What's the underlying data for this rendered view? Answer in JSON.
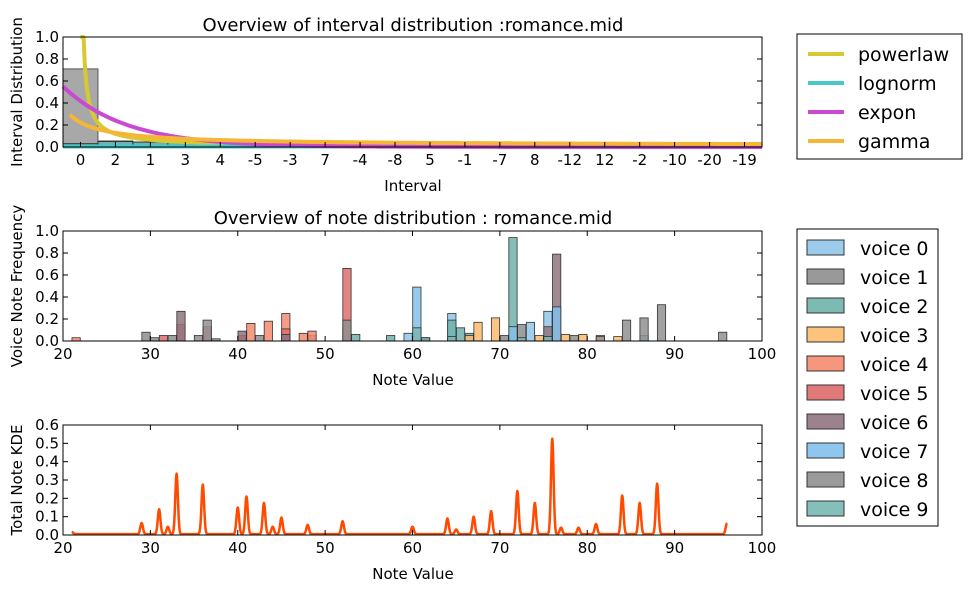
{
  "chart_data": [
    {
      "type": "bar",
      "title": "Overview of interval distribution :romance.mid",
      "xlabel": "Interval",
      "ylabel": "Interval Distribution",
      "ylim": [
        0,
        1.0
      ],
      "yticks": [
        "0.0",
        "0.2",
        "0.4",
        "0.6",
        "0.8",
        "1.0"
      ],
      "categories": [
        "0",
        "2",
        "1",
        "3",
        "4",
        "-5",
        "-3",
        "7",
        "-4",
        "-8",
        "5",
        "-1",
        "-7",
        "8",
        "-12",
        "12",
        "-2",
        "-10",
        "-20",
        "-19"
      ],
      "histogram": {
        "edges": [
          -0.5,
          0.5,
          1.5,
          2.5,
          3.5,
          4.5,
          5.5,
          6.5,
          7.5,
          8.5,
          9.5,
          10.5,
          11.5,
          12.5,
          13.5,
          14.5,
          15.5,
          16.5,
          17.5,
          18.5,
          19.5
        ],
        "values": [
          0.71,
          0.055,
          0.045,
          0.045,
          0.02,
          0.015,
          0.012,
          0.01,
          0.008,
          0.006,
          0.005,
          0.004,
          0.003,
          0.003,
          0.002,
          0.002,
          0.002,
          0.001,
          0.001,
          0.001
        ],
        "color": "#a8a8a8"
      },
      "overlay_histogram": {
        "edges": [
          -0.5,
          0.5,
          1.5,
          2.5,
          3.5,
          4.5,
          5.5,
          6.5,
          7.5
        ],
        "values": [
          0.03,
          0.05,
          0.045,
          0.045,
          0.02,
          0.012,
          0.008,
          0.005
        ],
        "color": "#5fb3b3"
      },
      "series": [
        {
          "name": "powerlaw",
          "color": "#d8c934",
          "kind": "powerlaw",
          "a": 0.12,
          "b": 0.22,
          "from": 0,
          "to": 9
        },
        {
          "name": "lognorm",
          "color": "#47c9c9",
          "kind": "constant",
          "value": 0.005,
          "from": -0.5,
          "to": 19.5
        },
        {
          "name": "expon",
          "color": "#c94ad1",
          "kind": "expon",
          "a": 0.55,
          "rate": 0.55,
          "from": -0.5,
          "to": 19.5
        },
        {
          "name": "gamma",
          "color": "#f6b635",
          "kind": "decay",
          "a": 0.25,
          "b": 1.0,
          "c": 0.015,
          "from": -0.3,
          "to": 19.5
        }
      ],
      "legend_placement": "outside-right"
    },
    {
      "type": "bar",
      "title": "Overview of note distribution : romance.mid",
      "xlabel": "Note Value",
      "ylabel": "Voice Note Frequency",
      "xlim": [
        20,
        100
      ],
      "ylim": [
        0,
        1.0
      ],
      "xticks": [
        20,
        30,
        40,
        50,
        60,
        70,
        80,
        90,
        100
      ],
      "yticks": [
        "0.0",
        "0.2",
        "0.4",
        "0.6",
        "0.8",
        "1.0"
      ],
      "bin_width": 0.95,
      "series": [
        {
          "name": "voice 0",
          "color": "#92c5ea",
          "bars": [
            [
              59.5,
              0.07
            ],
            [
              64.5,
              0.25
            ],
            [
              73.5,
              0.17
            ],
            [
              75.5,
              0.27
            ],
            [
              86.5,
              0.05
            ]
          ]
        },
        {
          "name": "voice 1",
          "color": "#8e8e8e",
          "bars": [
            [
              29.5,
              0.08
            ],
            [
              32.5,
              0.05
            ],
            [
              35.5,
              0.05
            ],
            [
              37.5,
              0.02
            ],
            [
              42.5,
              0.05
            ],
            [
              48.5,
              0.05
            ],
            [
              61.5,
              0.03
            ],
            [
              70.5,
              0.05
            ],
            [
              72.5,
              0.15
            ]
          ]
        },
        {
          "name": "voice 2",
          "color": "#6fb2aa",
          "bars": [
            [
              53.5,
              0.06
            ],
            [
              57.5,
              0.05
            ],
            [
              61.5,
              0.03
            ],
            [
              64.5,
              0.19
            ],
            [
              65.5,
              0.12
            ],
            [
              66.5,
              0.07
            ],
            [
              71.5,
              0.94
            ]
          ]
        },
        {
          "name": "voice 3",
          "color": "#fdbb6e",
          "bars": [
            [
              66.5,
              0.05
            ],
            [
              67.5,
              0.17
            ],
            [
              69.5,
              0.21
            ],
            [
              74.5,
              0.05
            ],
            [
              77.5,
              0.06
            ],
            [
              79.5,
              0.06
            ],
            [
              81.5,
              0.05
            ],
            [
              83.5,
              0.04
            ]
          ]
        },
        {
          "name": "voice 4",
          "color": "#f58b6f",
          "bars": [
            [
              21.5,
              0.03
            ],
            [
              41.5,
              0.16
            ],
            [
              43.5,
              0.18
            ],
            [
              45.5,
              0.25
            ],
            [
              47.5,
              0.07
            ],
            [
              48.5,
              0.09
            ],
            [
              52.5,
              0.12
            ]
          ]
        },
        {
          "name": "voice 5",
          "color": "#e06c6c",
          "bars": [
            [
              31.5,
              0.05
            ],
            [
              33.5,
              0.15
            ],
            [
              36.5,
              0.13
            ],
            [
              40.5,
              0.05
            ],
            [
              45.5,
              0.11
            ],
            [
              52.5,
              0.66
            ]
          ]
        },
        {
          "name": "voice 6",
          "color": "#917480",
          "bars": [
            [
              33.5,
              0.27
            ],
            [
              40.5,
              0.09
            ],
            [
              45.5,
              0.06
            ],
            [
              75.5,
              0.13
            ],
            [
              76.5,
              0.79
            ]
          ]
        },
        {
          "name": "voice 7",
          "color": "#83c0eb",
          "bars": [
            [
              60.5,
              0.49
            ],
            [
              71.5,
              0.13
            ],
            [
              76.5,
              0.31
            ]
          ]
        },
        {
          "name": "voice 8",
          "color": "#909090",
          "bars": [
            [
              30.5,
              0.03
            ],
            [
              36.5,
              0.19
            ],
            [
              52.5,
              0.19
            ],
            [
              78.5,
              0.05
            ],
            [
              81.5,
              0.04
            ],
            [
              84.5,
              0.19
            ],
            [
              86.5,
              0.21
            ],
            [
              88.5,
              0.33
            ],
            [
              95.5,
              0.08
            ]
          ]
        },
        {
          "name": "voice 9",
          "color": "#78b8b2",
          "bars": [
            [
              60.5,
              0.12
            ],
            [
              64.5,
              0.04
            ],
            [
              72.5,
              0.03
            ],
            [
              75.5,
              0.04
            ]
          ]
        }
      ],
      "legend_placement": "outside-right"
    },
    {
      "type": "line",
      "xlabel": "Note Value",
      "ylabel": "Total Note KDE",
      "xlim": [
        20,
        100
      ],
      "ylim": [
        0,
        0.6
      ],
      "xticks": [
        20,
        30,
        40,
        50,
        60,
        70,
        80,
        90,
        100
      ],
      "yticks": [
        "0.0",
        "0.1",
        "0.2",
        "0.3",
        "0.4",
        "0.5",
        "0.6"
      ],
      "color": "#ff4a00",
      "x_range": [
        21,
        96
      ],
      "baseline": 0.005,
      "peak_width": 0.15,
      "peaks": [
        [
          21,
          0.012
        ],
        [
          29,
          0.06
        ],
        [
          31,
          0.135
        ],
        [
          32,
          0.04
        ],
        [
          33,
          0.33
        ],
        [
          36,
          0.27
        ],
        [
          40,
          0.145
        ],
        [
          41,
          0.205
        ],
        [
          43,
          0.17
        ],
        [
          44,
          0.04
        ],
        [
          45,
          0.09
        ],
        [
          48,
          0.05
        ],
        [
          52,
          0.07
        ],
        [
          60,
          0.04
        ],
        [
          64,
          0.085
        ],
        [
          65,
          0.025
        ],
        [
          67,
          0.095
        ],
        [
          69,
          0.125
        ],
        [
          72,
          0.235
        ],
        [
          74,
          0.17
        ],
        [
          76,
          0.52
        ],
        [
          77,
          0.035
        ],
        [
          79,
          0.035
        ],
        [
          81,
          0.055
        ],
        [
          84,
          0.21
        ],
        [
          86,
          0.17
        ],
        [
          88,
          0.275
        ],
        [
          96,
          0.06
        ]
      ]
    }
  ]
}
